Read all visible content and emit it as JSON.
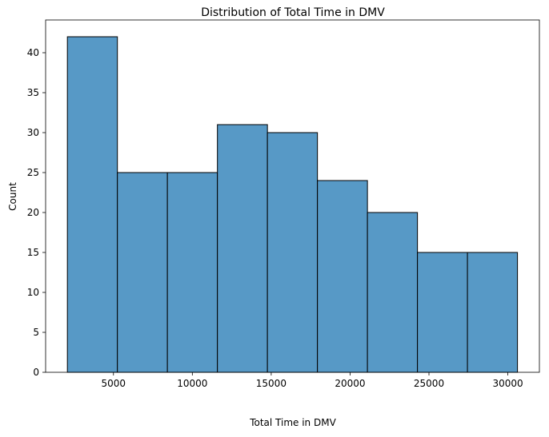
{
  "chart_data": {
    "type": "bar",
    "title": "Distribution of Total Time in DMV",
    "xlabel": "Total Time in DMV",
    "ylabel": "Count",
    "xlim": [
      700,
      32000
    ],
    "ylim": [
      0,
      44.1
    ],
    "xticks": [
      5000,
      10000,
      15000,
      20000,
      25000,
      30000
    ],
    "yticks": [
      0,
      5,
      10,
      15,
      20,
      25,
      30,
      35,
      40
    ],
    "bins": [
      {
        "x0": 2080,
        "x1": 5250,
        "count": 42
      },
      {
        "x0": 5250,
        "x1": 8420,
        "count": 25
      },
      {
        "x0": 8420,
        "x1": 11590,
        "count": 25
      },
      {
        "x0": 11590,
        "x1": 14760,
        "count": 31
      },
      {
        "x0": 14760,
        "x1": 17930,
        "count": 30
      },
      {
        "x0": 17930,
        "x1": 21100,
        "count": 24
      },
      {
        "x0": 21100,
        "x1": 24270,
        "count": 20
      },
      {
        "x0": 24270,
        "x1": 27440,
        "count": 15
      },
      {
        "x0": 27440,
        "x1": 30610,
        "count": 15
      }
    ],
    "bar_color": "#5799c6",
    "edge_color": "#000000",
    "grid": false,
    "legend": "none"
  }
}
